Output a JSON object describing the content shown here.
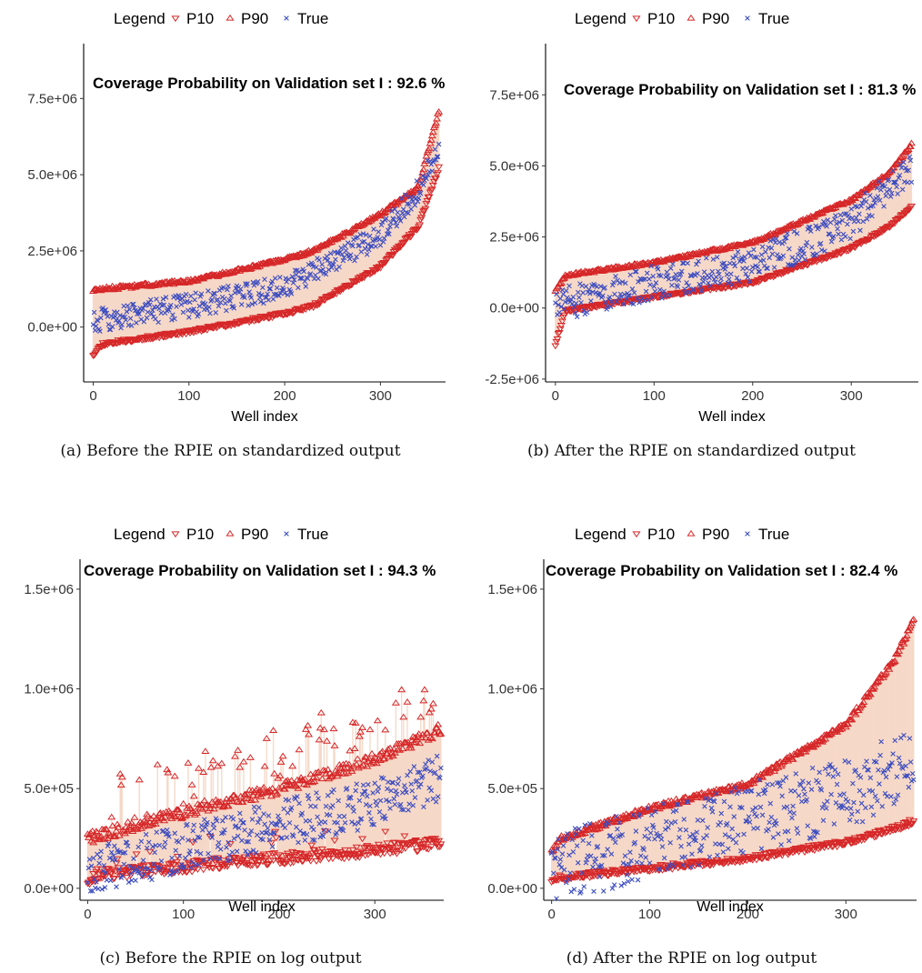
{
  "legend": {
    "title": "Legend",
    "items": [
      "P10",
      "P90",
      "True"
    ]
  },
  "colors": {
    "p10": "#d62728",
    "p90": "#d62728",
    "true": "#3b4cc0",
    "band": "#f4d3c1",
    "segment": "#e9a98f"
  },
  "chart_data": [
    {
      "id": "a",
      "type": "scatter",
      "caption": "(a) Before the RPIE on standardized output",
      "annotation": "Coverage Probability on Validation set I :  92.6 %",
      "xlabel": "Well index",
      "xlim": [
        -10,
        368
      ],
      "ylim": [
        -1800000,
        9300000
      ],
      "xticks": [
        0,
        100,
        200,
        300
      ],
      "yticks": [
        0,
        2500000,
        5000000,
        7500000
      ],
      "ytick_labels": [
        "0.0e+00",
        "2.5e+06",
        "5.0e+06",
        "7.5e+06"
      ],
      "n": 362,
      "p10_curve": [
        [
          0,
          -900000
        ],
        [
          10,
          -550000
        ],
        [
          100,
          -150000
        ],
        [
          200,
          450000
        ],
        [
          230,
          700000
        ],
        [
          300,
          2000000
        ],
        [
          340,
          3300000
        ],
        [
          362,
          5300000
        ]
      ],
      "p90_curve": [
        [
          0,
          1200000
        ],
        [
          10,
          1250000
        ],
        [
          100,
          1500000
        ],
        [
          200,
          2200000
        ],
        [
          230,
          2500000
        ],
        [
          300,
          3700000
        ],
        [
          340,
          4600000
        ],
        [
          362,
          7200000
        ]
      ],
      "true_curve": [
        [
          0,
          200000
        ],
        [
          100,
          700000
        ],
        [
          200,
          1300000
        ],
        [
          300,
          3000000
        ],
        [
          340,
          4500000
        ],
        [
          362,
          6000000
        ]
      ],
      "true_spread": 400000,
      "noise": 60000,
      "seed": 11
    },
    {
      "id": "b",
      "type": "scatter",
      "caption": "(b) After the RPIE on standardized output",
      "annotation": "Coverage Probability on Validation set I :  81.3 %",
      "xlabel": "Well index",
      "xlim": [
        -10,
        368
      ],
      "ylim": [
        -2600000,
        9300000
      ],
      "xticks": [
        0,
        100,
        200,
        300
      ],
      "yticks": [
        -2500000,
        0,
        2500000,
        5000000,
        7500000
      ],
      "ytick_labels": [
        "-2.5e+06",
        "0.0e+00",
        "2.5e+06",
        "5.0e+06",
        "7.5e+06"
      ],
      "n": 362,
      "p10_curve": [
        [
          0,
          -1300000
        ],
        [
          10,
          -100000
        ],
        [
          100,
          400000
        ],
        [
          200,
          900000
        ],
        [
          300,
          2100000
        ],
        [
          340,
          2900000
        ],
        [
          362,
          3600000
        ]
      ],
      "p90_curve": [
        [
          0,
          600000
        ],
        [
          10,
          1150000
        ],
        [
          100,
          1600000
        ],
        [
          200,
          2300000
        ],
        [
          300,
          3800000
        ],
        [
          340,
          4800000
        ],
        [
          362,
          5800000
        ]
      ],
      "true_curve": [
        [
          0,
          100000
        ],
        [
          100,
          900000
        ],
        [
          200,
          1500000
        ],
        [
          300,
          3000000
        ],
        [
          340,
          4300000
        ],
        [
          362,
          5000000
        ]
      ],
      "true_spread": 600000,
      "noise": 50000,
      "seed": 23
    },
    {
      "id": "c",
      "type": "scatter",
      "caption": "(c) Before the RPIE on log output",
      "annotation": "Coverage Probability on Validation set I :  94.3 %",
      "xlabel": "Well index",
      "xlim": [
        -8,
        372
      ],
      "ylim": [
        -60000,
        1650000
      ],
      "xticks": [
        0,
        100,
        200,
        300
      ],
      "yticks": [
        0,
        500000,
        1000000,
        1500000
      ],
      "ytick_labels": [
        "0.0e+00",
        "5.0e+05",
        "1.0e+06",
        "1.5e+06"
      ],
      "n": 370,
      "p10_curve": [
        [
          0,
          40000
        ],
        [
          10,
          70000
        ],
        [
          100,
          110000
        ],
        [
          200,
          150000
        ],
        [
          300,
          190000
        ],
        [
          370,
          230000
        ]
      ],
      "p90_curve": [
        [
          0,
          250000
        ],
        [
          100,
          380000
        ],
        [
          200,
          500000
        ],
        [
          300,
          650000
        ],
        [
          370,
          800000
        ]
      ],
      "true_curve": [
        [
          0,
          80000
        ],
        [
          100,
          200000
        ],
        [
          200,
          320000
        ],
        [
          300,
          430000
        ],
        [
          370,
          560000
        ]
      ],
      "true_spread": 120000,
      "noise": 30000,
      "p10_spike": 0.06,
      "p90_spike": 0.22,
      "p90_spike_mag": 300000,
      "seed": 37
    },
    {
      "id": "d",
      "type": "scatter",
      "caption": "(d) After the RPIE on log output",
      "annotation": "Coverage Probability on Validation set I :  82.4 %",
      "xlabel": "Well index",
      "xlim": [
        -8,
        372
      ],
      "ylim": [
        -60000,
        1650000
      ],
      "xticks": [
        0,
        100,
        200,
        300
      ],
      "yticks": [
        0,
        500000,
        1000000,
        1500000
      ],
      "ytick_labels": [
        "0.0e+00",
        "5.0e+05",
        "1.0e+06",
        "1.5e+06"
      ],
      "n": 370,
      "p10_curve": [
        [
          0,
          40000
        ],
        [
          10,
          55000
        ],
        [
          100,
          100000
        ],
        [
          200,
          150000
        ],
        [
          300,
          230000
        ],
        [
          350,
          300000
        ],
        [
          370,
          340000
        ]
      ],
      "p90_curve": [
        [
          0,
          180000
        ],
        [
          10,
          250000
        ],
        [
          100,
          400000
        ],
        [
          200,
          520000
        ],
        [
          300,
          820000
        ],
        [
          350,
          1150000
        ],
        [
          370,
          1350000
        ]
      ],
      "true_curve": [
        [
          0,
          90000
        ],
        [
          100,
          230000
        ],
        [
          200,
          350000
        ],
        [
          300,
          470000
        ],
        [
          370,
          650000
        ]
      ],
      "true_spread": 180000,
      "noise": 15000,
      "seed": 51
    }
  ]
}
